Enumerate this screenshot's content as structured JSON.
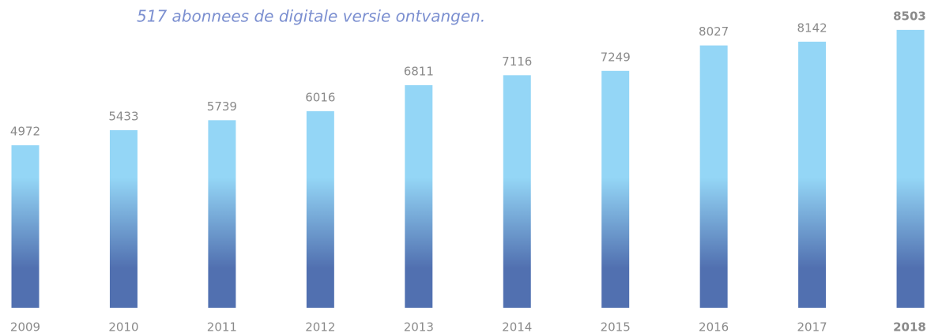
{
  "chart_data": {
    "type": "bar",
    "title": "517 abonnees de digitale versie ontvangen.",
    "categories": [
      "2009",
      "2010",
      "2011",
      "2012",
      "2013",
      "2014",
      "2015",
      "2016",
      "2017",
      "2018"
    ],
    "values": [
      4972,
      5433,
      5739,
      6016,
      6811,
      7116,
      7249,
      8027,
      8142,
      8503
    ],
    "color_top": "#94d6f6",
    "color_bottom": "#5170b0",
    "highlight": {
      "category": "2018",
      "color": "#f08a5d"
    },
    "ylim": [
      0,
      8500
    ]
  }
}
